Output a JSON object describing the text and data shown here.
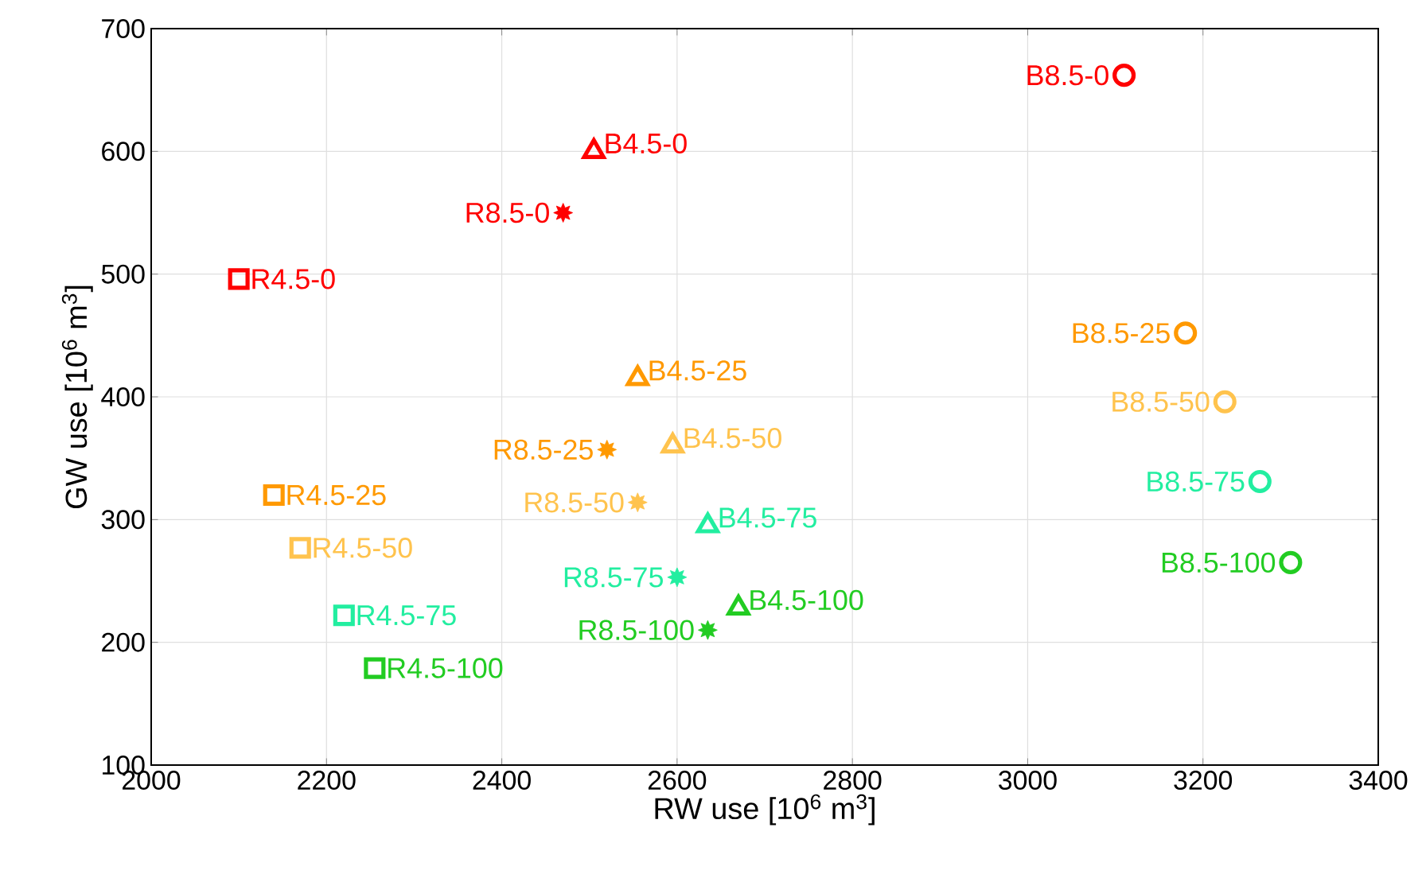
{
  "chart_data": {
    "type": "scatter",
    "xlabel": "RW use [10$^{6}$ m$^{3}$]",
    "ylabel": "GW use [10$^{6}$ m$^{3}$]",
    "xlim": [
      2000,
      3400
    ],
    "ylim": [
      100,
      700
    ],
    "xticks": [
      2000,
      2200,
      2400,
      2600,
      2800,
      3000,
      3200,
      3400
    ],
    "yticks": [
      100,
      200,
      300,
      400,
      500,
      600,
      700
    ],
    "grid": true,
    "legend": false,
    "series": [
      {
        "name": "R4.5-0",
        "color": "#ff0000",
        "marker": "square",
        "x": [
          2100
        ],
        "values": [
          496
        ]
      },
      {
        "name": "R4.5-25",
        "color": "#ff9900",
        "marker": "square",
        "x": [
          2140
        ],
        "values": [
          320
        ]
      },
      {
        "name": "R4.5-50",
        "color": "#ffc34d",
        "marker": "square",
        "x": [
          2170
        ],
        "values": [
          277
        ]
      },
      {
        "name": "R4.5-75",
        "color": "#22eea0",
        "marker": "square",
        "x": [
          2220
        ],
        "values": [
          222
        ]
      },
      {
        "name": "R4.5-100",
        "color": "#22cc22",
        "marker": "square",
        "x": [
          2255
        ],
        "values": [
          179
        ]
      },
      {
        "name": "R8.5-0",
        "color": "#ff0000",
        "marker": "star",
        "x": [
          2470
        ],
        "values": [
          550
        ]
      },
      {
        "name": "R8.5-25",
        "color": "#ff9900",
        "marker": "star",
        "x": [
          2520
        ],
        "values": [
          357
        ]
      },
      {
        "name": "R8.5-50",
        "color": "#ffc34d",
        "marker": "star",
        "x": [
          2555
        ],
        "values": [
          314
        ]
      },
      {
        "name": "R8.5-75",
        "color": "#22eea0",
        "marker": "star",
        "x": [
          2600
        ],
        "values": [
          253
        ]
      },
      {
        "name": "R8.5-100",
        "color": "#22cc22",
        "marker": "star",
        "x": [
          2635
        ],
        "values": [
          210
        ]
      },
      {
        "name": "B4.5-0",
        "color": "#ff0000",
        "marker": "triangle",
        "x": [
          2505
        ],
        "values": [
          600
        ]
      },
      {
        "name": "B4.5-25",
        "color": "#ff9900",
        "marker": "triangle",
        "x": [
          2555
        ],
        "values": [
          415
        ]
      },
      {
        "name": "B4.5-50",
        "color": "#ffc34d",
        "marker": "triangle",
        "x": [
          2595
        ],
        "values": [
          360
        ]
      },
      {
        "name": "B4.5-75",
        "color": "#22eea0",
        "marker": "triangle",
        "x": [
          2635
        ],
        "values": [
          295
        ]
      },
      {
        "name": "B4.5-100",
        "color": "#22cc22",
        "marker": "triangle",
        "x": [
          2670
        ],
        "values": [
          228
        ]
      },
      {
        "name": "B8.5-0",
        "color": "#ff0000",
        "marker": "circle",
        "x": [
          3110
        ],
        "values": [
          662
        ]
      },
      {
        "name": "B8.5-25",
        "color": "#ff9900",
        "marker": "circle",
        "x": [
          3180
        ],
        "values": [
          452
        ]
      },
      {
        "name": "B8.5-50",
        "color": "#ffc34d",
        "marker": "circle",
        "x": [
          3225
        ],
        "values": [
          396
        ]
      },
      {
        "name": "B8.5-75",
        "color": "#22eea0",
        "marker": "circle",
        "x": [
          3265
        ],
        "values": [
          331
        ]
      },
      {
        "name": "B8.5-100",
        "color": "#22cc22",
        "marker": "circle",
        "x": [
          3300
        ],
        "values": [
          265
        ]
      }
    ]
  }
}
